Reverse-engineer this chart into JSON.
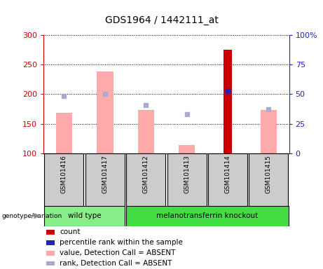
{
  "title": "GDS1964 / 1442111_at",
  "samples": [
    "GSM101416",
    "GSM101417",
    "GSM101412",
    "GSM101413",
    "GSM101414",
    "GSM101415"
  ],
  "groups": [
    "wild type",
    "wild type",
    "melanotransferrin knockout",
    "melanotransferrin knockout",
    "melanotransferrin knockout",
    "melanotransferrin knockout"
  ],
  "group_labels": [
    "wild type",
    "melanotransferrin knockout"
  ],
  "bar_values_absent": [
    168,
    238,
    173,
    114,
    0,
    173
  ],
  "rank_markers_absent": [
    197,
    201,
    182,
    166,
    0,
    175
  ],
  "count_values": [
    0,
    0,
    0,
    0,
    275,
    0
  ],
  "count_rank": [
    0,
    0,
    0,
    0,
    205,
    0
  ],
  "ylim_left": [
    100,
    300
  ],
  "ylim_right": [
    0,
    100
  ],
  "yticks_left": [
    100,
    150,
    200,
    250,
    300
  ],
  "yticks_right": [
    0,
    25,
    50,
    75,
    100
  ],
  "ytick_labels_right": [
    "0",
    "25",
    "50",
    "75",
    "100%"
  ],
  "color_count": "#cc0000",
  "color_rank_pct": "#2222bb",
  "color_bar_absent": "#ffaaaa",
  "color_rank_absent": "#aaaacc",
  "color_axis_left": "#cc0000",
  "color_axis_right": "#2222bb",
  "color_wt_bg": "#88ee88",
  "color_ko_bg": "#44dd44",
  "color_sample_bg": "#cccccc",
  "legend_items": [
    {
      "color": "#cc0000",
      "label": "count"
    },
    {
      "color": "#2222bb",
      "label": "percentile rank within the sample"
    },
    {
      "color": "#ffaaaa",
      "label": "value, Detection Call = ABSENT"
    },
    {
      "color": "#aaaacc",
      "label": "rank, Detection Call = ABSENT"
    }
  ]
}
